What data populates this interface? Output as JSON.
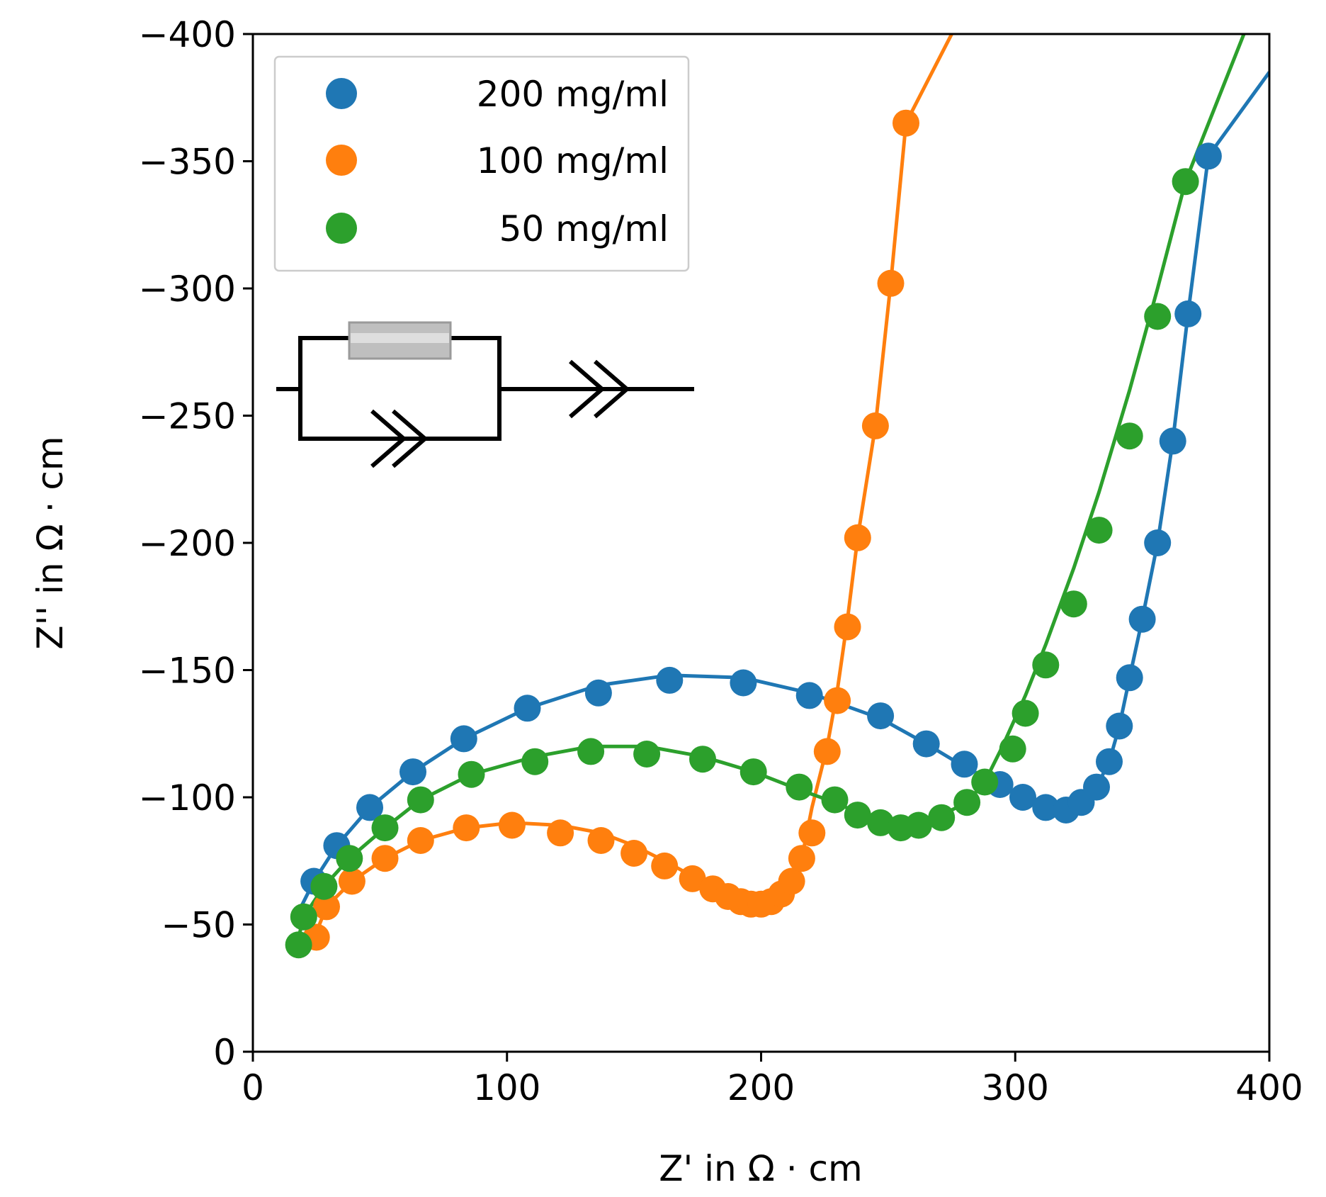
{
  "chart_data": {
    "type": "scatter",
    "xlabel": "Z' in Ω · cm",
    "ylabel": "Z'' in Ω · cm",
    "xlim": [
      0,
      400
    ],
    "ylim": [
      0,
      -400
    ],
    "xticks": [
      "0",
      "100",
      "200",
      "300",
      "400"
    ],
    "yticks": [
      "0",
      "−50",
      "−100",
      "−150",
      "−200",
      "−250",
      "−300",
      "−350",
      "−400"
    ],
    "legend_position": "top-left",
    "grid": false,
    "series": [
      {
        "name": "200 mg/ml",
        "color": "#1f77b4",
        "points": [
          [
            24,
            -67
          ],
          [
            33,
            -81
          ],
          [
            46,
            -96
          ],
          [
            63,
            -110
          ],
          [
            83,
            -123
          ],
          [
            108,
            -135
          ],
          [
            136,
            -141
          ],
          [
            164,
            -146
          ],
          [
            193,
            -145
          ],
          [
            219,
            -140
          ],
          [
            247,
            -132
          ],
          [
            265,
            -121
          ],
          [
            280,
            -113
          ],
          [
            294,
            -105
          ],
          [
            303,
            -100
          ],
          [
            312,
            -96
          ],
          [
            320,
            -95
          ],
          [
            326,
            -98
          ],
          [
            332,
            -104
          ],
          [
            337,
            -114
          ],
          [
            341,
            -128
          ],
          [
            345,
            -147
          ],
          [
            350,
            -170
          ],
          [
            356,
            -200
          ],
          [
            362,
            -240
          ],
          [
            368,
            -290
          ],
          [
            376,
            -352
          ]
        ],
        "fit": [
          [
            18,
            -55
          ],
          [
            24,
            -67
          ],
          [
            33,
            -81
          ],
          [
            46,
            -96
          ],
          [
            63,
            -110
          ],
          [
            83,
            -123
          ],
          [
            108,
            -135
          ],
          [
            136,
            -144
          ],
          [
            164,
            -148
          ],
          [
            193,
            -147
          ],
          [
            219,
            -141
          ],
          [
            247,
            -131
          ],
          [
            265,
            -121
          ],
          [
            280,
            -112
          ],
          [
            294,
            -105
          ],
          [
            303,
            -100
          ],
          [
            312,
            -97
          ],
          [
            320,
            -96
          ],
          [
            326,
            -98
          ],
          [
            332,
            -104
          ],
          [
            337,
            -114
          ],
          [
            341,
            -128
          ],
          [
            345,
            -147
          ],
          [
            350,
            -170
          ],
          [
            356,
            -200
          ],
          [
            362,
            -240
          ],
          [
            368,
            -290
          ],
          [
            376,
            -352
          ],
          [
            400,
            -385
          ]
        ]
      },
      {
        "name": "100 mg/ml",
        "color": "#ff7f0e",
        "points": [
          [
            25,
            -45
          ],
          [
            29,
            -57
          ],
          [
            39,
            -67
          ],
          [
            52,
            -76
          ],
          [
            66,
            -83
          ],
          [
            84,
            -88
          ],
          [
            102,
            -89
          ],
          [
            121,
            -86
          ],
          [
            137,
            -83
          ],
          [
            150,
            -78
          ],
          [
            162,
            -73
          ],
          [
            173,
            -68
          ],
          [
            181,
            -64
          ],
          [
            187,
            -61
          ],
          [
            192,
            -59
          ],
          [
            196,
            -58
          ],
          [
            200,
            -58
          ],
          [
            204,
            -59
          ],
          [
            208,
            -62
          ],
          [
            212,
            -67
          ],
          [
            216,
            -76
          ],
          [
            220,
            -86
          ],
          [
            226,
            -118
          ],
          [
            230,
            -138
          ],
          [
            234,
            -167
          ],
          [
            238,
            -202
          ],
          [
            245,
            -246
          ],
          [
            251,
            -302
          ],
          [
            257,
            -365
          ]
        ],
        "fit": [
          [
            22,
            -42
          ],
          [
            25,
            -47
          ],
          [
            29,
            -57
          ],
          [
            39,
            -67
          ],
          [
            52,
            -76
          ],
          [
            66,
            -83
          ],
          [
            84,
            -88
          ],
          [
            102,
            -90
          ],
          [
            121,
            -89
          ],
          [
            137,
            -86
          ],
          [
            150,
            -81
          ],
          [
            162,
            -75
          ],
          [
            173,
            -69
          ],
          [
            181,
            -65
          ],
          [
            187,
            -62
          ],
          [
            192,
            -60
          ],
          [
            196,
            -59
          ],
          [
            200,
            -59
          ],
          [
            204,
            -60
          ],
          [
            208,
            -63
          ],
          [
            212,
            -68
          ],
          [
            216,
            -76
          ],
          [
            220,
            -96
          ],
          [
            226,
            -120
          ],
          [
            230,
            -142
          ],
          [
            234,
            -170
          ],
          [
            238,
            -202
          ],
          [
            245,
            -246
          ],
          [
            251,
            -302
          ],
          [
            257,
            -365
          ],
          [
            275,
            -400
          ]
        ]
      },
      {
        "name": "50 mg/ml",
        "color": "#2ca02c",
        "points": [
          [
            18,
            -42
          ],
          [
            20,
            -53
          ],
          [
            28,
            -65
          ],
          [
            38,
            -76
          ],
          [
            52,
            -88
          ],
          [
            66,
            -99
          ],
          [
            86,
            -109
          ],
          [
            111,
            -114
          ],
          [
            133,
            -118
          ],
          [
            155,
            -117
          ],
          [
            177,
            -115
          ],
          [
            197,
            -110
          ],
          [
            215,
            -104
          ],
          [
            229,
            -99
          ],
          [
            238,
            -93
          ],
          [
            247,
            -90
          ],
          [
            255,
            -88
          ],
          [
            262,
            -89
          ],
          [
            271,
            -92
          ],
          [
            281,
            -98
          ],
          [
            288,
            -106
          ],
          [
            299,
            -119
          ],
          [
            304,
            -133
          ],
          [
            312,
            -152
          ],
          [
            323,
            -176
          ],
          [
            333,
            -205
          ],
          [
            345,
            -242
          ],
          [
            356,
            -289
          ],
          [
            367,
            -342
          ]
        ],
        "fit": [
          [
            18,
            -45
          ],
          [
            20,
            -53
          ],
          [
            28,
            -65
          ],
          [
            38,
            -76
          ],
          [
            52,
            -88
          ],
          [
            66,
            -99
          ],
          [
            86,
            -109
          ],
          [
            111,
            -116
          ],
          [
            133,
            -120
          ],
          [
            155,
            -120
          ],
          [
            177,
            -116
          ],
          [
            197,
            -110
          ],
          [
            215,
            -103
          ],
          [
            229,
            -98
          ],
          [
            238,
            -94
          ],
          [
            247,
            -91
          ],
          [
            255,
            -89
          ],
          [
            262,
            -90
          ],
          [
            271,
            -93
          ],
          [
            281,
            -98
          ],
          [
            288,
            -106
          ],
          [
            295,
            -120
          ],
          [
            304,
            -140
          ],
          [
            312,
            -160
          ],
          [
            323,
            -190
          ],
          [
            333,
            -220
          ],
          [
            345,
            -260
          ],
          [
            356,
            -300
          ],
          [
            367,
            -342
          ],
          [
            390,
            -400
          ]
        ]
      }
    ]
  }
}
